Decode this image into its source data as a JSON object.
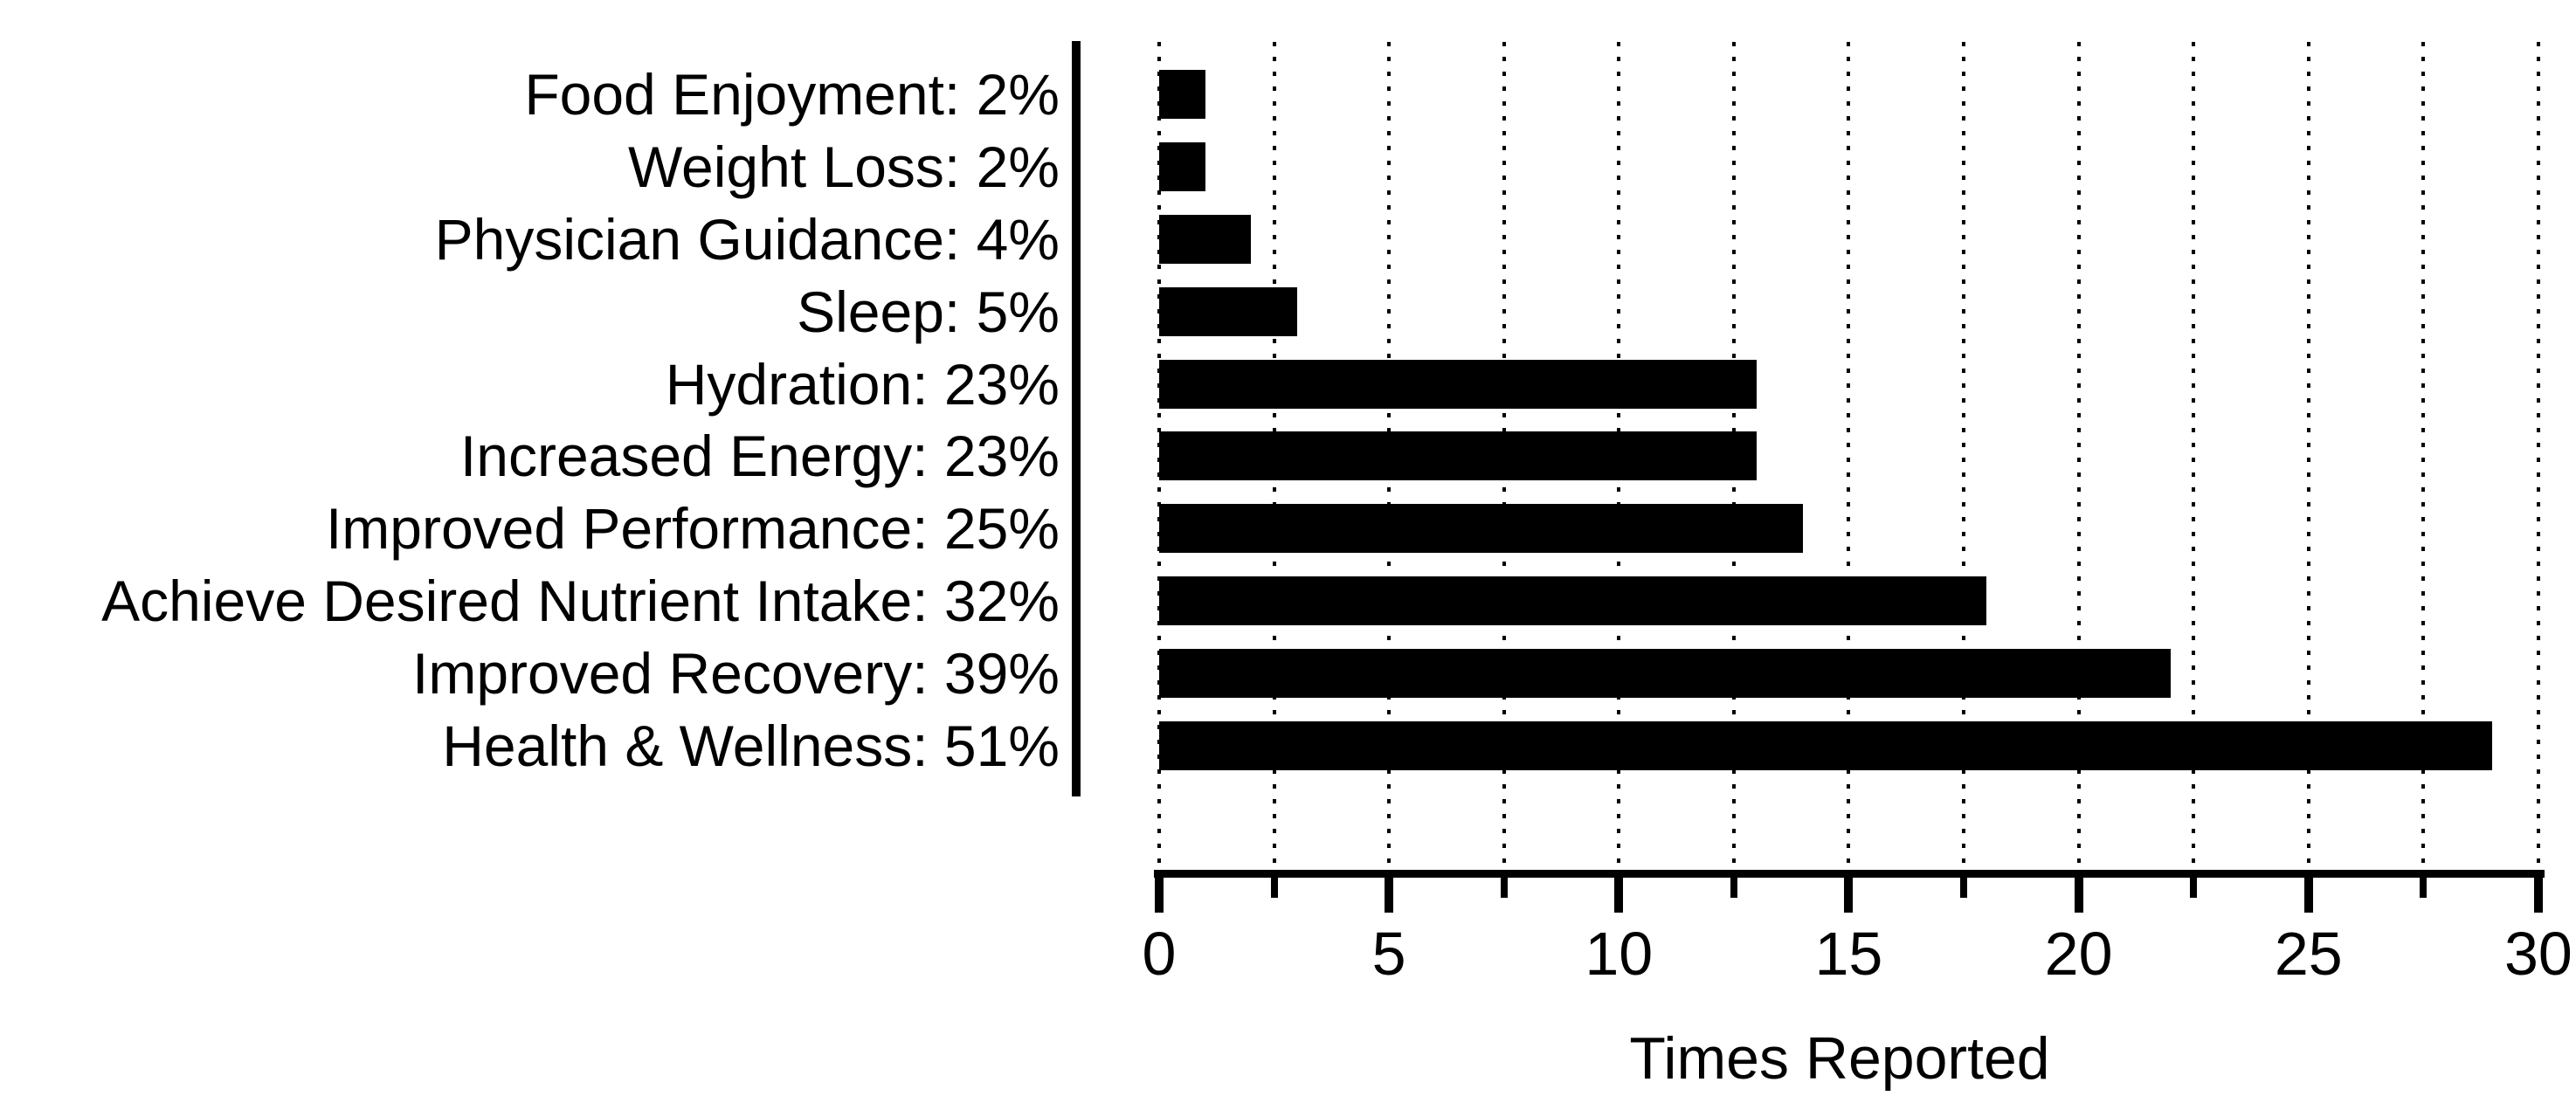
{
  "page": {
    "background": "#ffffff"
  },
  "chart_data": {
    "type": "bar",
    "orientation": "horizontal",
    "title": "",
    "xlabel": "Times Reported",
    "ylabel": "",
    "categories": [
      "Food Enjoyment: 2%",
      "Weight Loss: 2%",
      "Physician Guidance: 4%",
      "Sleep: 5%",
      "Hydration: 23%",
      "Increased Energy: 23%",
      "Improved Performance: 25%",
      "Achieve Desired Nutrient Intake: 32%",
      "Improved Recovery: 39%",
      "Health & Wellness: 51%"
    ],
    "category_percentages": [
      2,
      2,
      4,
      5,
      23,
      23,
      25,
      32,
      39,
      51
    ],
    "values": [
      1,
      1,
      2,
      3,
      13,
      13,
      14,
      18,
      22,
      29
    ],
    "xlim": [
      0,
      30
    ],
    "x_major_ticks": [
      {
        "value": 0,
        "label": "0"
      },
      {
        "value": 5,
        "label": "5"
      },
      {
        "value": 10,
        "label": "10"
      },
      {
        "value": 15,
        "label": "15"
      },
      {
        "value": 20,
        "label": "20"
      },
      {
        "value": 25,
        "label": "25"
      },
      {
        "value": 30,
        "label": "30"
      }
    ],
    "x_minor_tick_values": [
      2.5,
      7.5,
      12.5,
      17.5,
      22.5,
      27.5
    ],
    "gridline_values": [
      0,
      2.5,
      5,
      7.5,
      10,
      12.5,
      15,
      17.5,
      20,
      22.5,
      25,
      27.5,
      30
    ],
    "grid_style": "dotted-vertical",
    "legend": "none",
    "bar_color": "#000000",
    "axis_color": "#000000",
    "background": "#ffffff"
  }
}
